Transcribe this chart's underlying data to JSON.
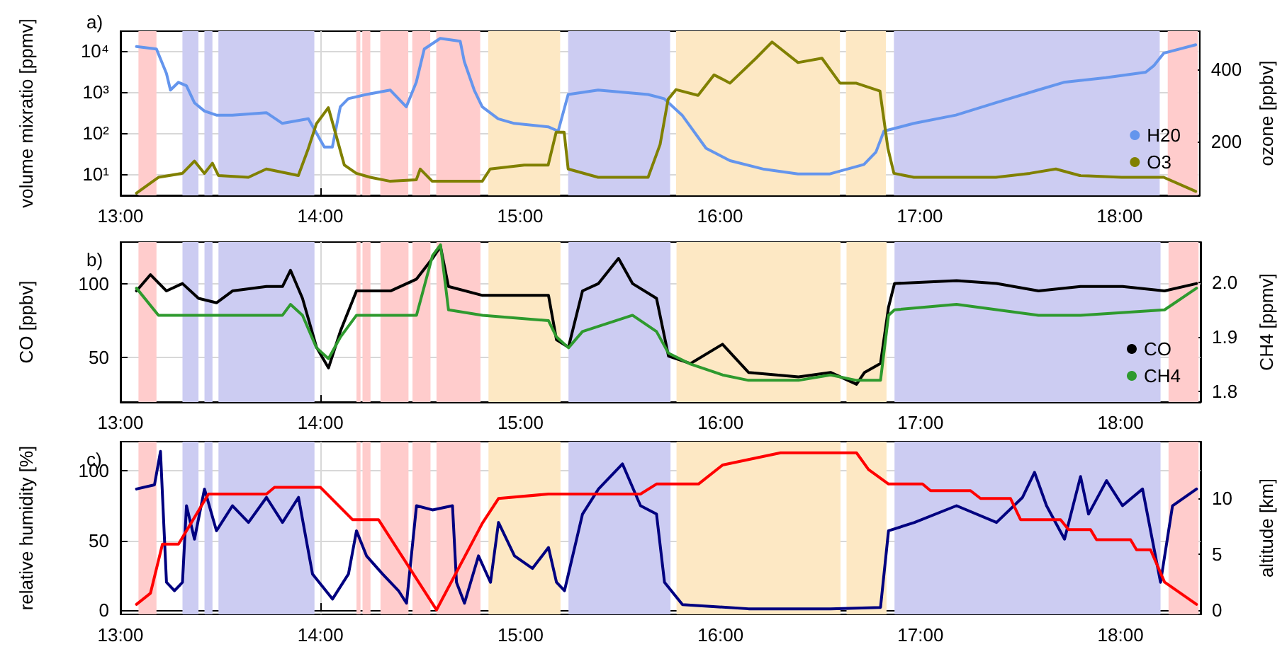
{
  "chart_data": [
    {
      "type": "line",
      "title": "a)",
      "ylabel": "volume mixratio [ppmv]",
      "y2label": "ozone [ppbv]",
      "log": "y",
      "grid": true,
      "legend": "bottom right",
      "marker": "none",
      "xlim": [
        13.0,
        18.4
      ],
      "xticks": [
        {
          "value": 13,
          "label": "13:00"
        },
        {
          "value": 14,
          "label": "14:00"
        },
        {
          "value": 15,
          "label": "15:00"
        },
        {
          "value": 16,
          "label": "16:00"
        },
        {
          "value": 17,
          "label": "17:00"
        },
        {
          "value": 18,
          "label": "18:00"
        }
      ],
      "ylim": [
        3,
        30000
      ],
      "yticks": [
        {
          "value": 10,
          "label": "10¹"
        },
        {
          "value": 100,
          "label": "10²"
        },
        {
          "value": 1000,
          "label": "10³"
        },
        {
          "value": 10000,
          "label": "10⁴"
        }
      ],
      "y2lim": [
        50,
        505
      ],
      "y2ticks": [
        200,
        400
      ],
      "series": [
        {
          "name": "H20",
          "color": "#6495ed",
          "x": [
            13.08,
            13.18,
            13.23,
            13.25,
            13.29,
            13.33,
            13.37,
            13.42,
            13.48,
            13.56,
            13.73,
            13.81,
            13.94,
            14.02,
            14.06,
            14.1,
            14.14,
            14.23,
            14.35,
            14.43,
            14.48,
            14.52,
            14.6,
            14.7,
            14.72,
            14.77,
            14.81,
            14.89,
            14.97,
            15.14,
            15.19,
            15.24,
            15.39,
            15.64,
            15.72,
            15.81,
            15.93,
            16.05,
            16.22,
            16.39,
            16.55,
            16.72,
            16.78,
            16.82,
            16.97,
            17.18,
            17.38,
            17.59,
            17.72,
            17.93,
            18.13,
            18.17,
            18.22,
            18.38
          ],
          "values": [
            12600,
            11000,
            2800,
            1100,
            1700,
            1400,
            540,
            340,
            270,
            270,
            310,
            170,
            220,
            45,
            45,
            430,
            680,
            860,
            1100,
            430,
            1700,
            11000,
            20000,
            17000,
            5500,
            1100,
            430,
            220,
            170,
            140,
            110,
            860,
            1100,
            860,
            680,
            270,
            42,
            21,
            13,
            10,
            10,
            17,
            34,
            110,
            170,
            270,
            540,
            1100,
            1700,
            2200,
            3000,
            4300,
            8700,
            14000
          ]
        },
        {
          "name": "O3",
          "color": "#808000",
          "axis": "y2",
          "x": [
            13.08,
            13.19,
            13.31,
            13.37,
            13.42,
            13.46,
            13.49,
            13.64,
            13.73,
            13.89,
            13.94,
            13.98,
            14.04,
            14.08,
            14.12,
            14.18,
            14.25,
            14.35,
            14.48,
            14.5,
            14.56,
            14.81,
            14.85,
            15.02,
            15.14,
            15.18,
            15.22,
            15.24,
            15.39,
            15.64,
            15.7,
            15.74,
            15.78,
            15.89,
            15.97,
            16.05,
            16.18,
            16.26,
            16.39,
            16.51,
            16.6,
            16.68,
            16.8,
            16.84,
            16.87,
            16.97,
            17.38,
            17.55,
            17.68,
            17.8,
            18.01,
            18.22,
            18.38
          ],
          "values": [
            56,
            100,
            111,
            145,
            111,
            139,
            105,
            100,
            123,
            105,
            180,
            248,
            293,
            214,
            134,
            111,
            100,
            89,
            93,
            123,
            89,
            89,
            123,
            134,
            134,
            225,
            225,
            123,
            100,
            100,
            191,
            316,
            343,
            327,
            384,
            361,
            430,
            475,
            418,
            430,
            361,
            361,
            339,
            180,
            111,
            100,
            100,
            111,
            123,
            105,
            100,
            100,
            61
          ]
        }
      ],
      "bands": [
        {
          "axis": "x",
          "from": 13.09,
          "to": 13.18,
          "color": "#ffcccc"
        },
        {
          "axis": "x",
          "from": 13.31,
          "to": 13.39,
          "color": "#ccccf2"
        },
        {
          "axis": "x",
          "from": 13.42,
          "to": 13.46,
          "color": "#ccccf2"
        },
        {
          "axis": "x",
          "from": 13.49,
          "to": 13.97,
          "color": "#ccccf2"
        },
        {
          "axis": "x",
          "from": 14.18,
          "to": 14.2,
          "color": "#ffcccc"
        },
        {
          "axis": "x",
          "from": 14.21,
          "to": 14.25,
          "color": "#ffcccc"
        },
        {
          "axis": "x",
          "from": 14.3,
          "to": 14.44,
          "color": "#ffcccc"
        },
        {
          "axis": "x",
          "from": 14.46,
          "to": 14.55,
          "color": "#ffcccc"
        },
        {
          "axis": "x",
          "from": 14.58,
          "to": 14.8,
          "color": "#ffcccc"
        },
        {
          "axis": "x",
          "from": 14.84,
          "to": 15.2,
          "color": "#fde8c4"
        },
        {
          "axis": "x",
          "from": 15.24,
          "to": 15.75,
          "color": "#ccccf2"
        },
        {
          "axis": "x",
          "from": 15.78,
          "to": 16.6,
          "color": "#fde8c4"
        },
        {
          "axis": "x",
          "from": 16.63,
          "to": 16.83,
          "color": "#fde8c4"
        },
        {
          "axis": "x",
          "from": 16.87,
          "to": 18.2,
          "color": "#ccccf2"
        },
        {
          "axis": "x",
          "from": 18.24,
          "to": 18.39,
          "color": "#ffcccc"
        }
      ]
    },
    {
      "type": "line",
      "title": "b)",
      "ylabel": "CO [ppbv]",
      "y2label": "CH4 [ppmv]",
      "grid": true,
      "legend": "bottom right",
      "marker": "none",
      "xlim": [
        13.0,
        18.4
      ],
      "xticks": [
        {
          "value": 13,
          "label": "13:00"
        },
        {
          "value": 14,
          "label": "14:00"
        },
        {
          "value": 15,
          "label": "15:00"
        },
        {
          "value": 16,
          "label": "16:00"
        },
        {
          "value": 17,
          "label": "17:00"
        },
        {
          "value": 18,
          "label": "18:00"
        }
      ],
      "ylim": [
        20,
        128
      ],
      "yticks": [
        50,
        100
      ],
      "y2lim": [
        1.78,
        2.075
      ],
      "y2ticks": [
        {
          "value": 1.8,
          "label": "1.8"
        },
        {
          "value": 1.9,
          "label": "1.9"
        },
        {
          "value": 2.0,
          "label": "2.0"
        }
      ],
      "series": [
        {
          "name": "CO",
          "color": "#000000",
          "x": [
            13.08,
            13.15,
            13.23,
            13.31,
            13.39,
            13.48,
            13.56,
            13.73,
            13.81,
            13.85,
            13.91,
            13.98,
            14.04,
            14.1,
            14.18,
            14.35,
            14.48,
            14.56,
            14.6,
            14.64,
            14.81,
            14.97,
            15.14,
            15.18,
            15.24,
            15.31,
            15.39,
            15.49,
            15.56,
            15.68,
            15.74,
            15.85,
            16.01,
            16.14,
            16.39,
            16.55,
            16.68,
            16.72,
            16.8,
            16.84,
            16.87,
            17.18,
            17.38,
            17.59,
            17.8,
            18.01,
            18.22,
            18.38
          ],
          "values": [
            95,
            106,
            95,
            100,
            90,
            87,
            95,
            98,
            98,
            109,
            90,
            57,
            43,
            68,
            95,
            95,
            103,
            117,
            125,
            98,
            92,
            92,
            92,
            62,
            57,
            95,
            100,
            117,
            100,
            90,
            51,
            46,
            59,
            40,
            37,
            40,
            32,
            40,
            46,
            84,
            100,
            102,
            100,
            95,
            98,
            98,
            95,
            100
          ]
        },
        {
          "name": "CH4",
          "color": "#2e9a2e",
          "axis": "y2",
          "x": [
            13.08,
            13.19,
            13.48,
            13.81,
            13.85,
            13.91,
            13.98,
            14.04,
            14.1,
            14.18,
            14.48,
            14.56,
            14.6,
            14.64,
            14.81,
            15.14,
            15.18,
            15.24,
            15.31,
            15.56,
            15.68,
            15.74,
            15.85,
            16.01,
            16.14,
            16.39,
            16.55,
            16.68,
            16.8,
            16.84,
            16.87,
            17.18,
            17.59,
            17.8,
            18.22,
            18.38
          ],
          "values": [
            1.99,
            1.94,
            1.94,
            1.94,
            1.96,
            1.94,
            1.88,
            1.86,
            1.9,
            1.94,
            1.94,
            2.05,
            2.07,
            1.95,
            1.94,
            1.93,
            1.9,
            1.88,
            1.91,
            1.94,
            1.91,
            1.87,
            1.85,
            1.83,
            1.82,
            1.82,
            1.83,
            1.82,
            1.82,
            1.94,
            1.95,
            1.96,
            1.94,
            1.94,
            1.95,
            1.99
          ]
        }
      ],
      "bands": [
        {
          "axis": "x",
          "from": 13.09,
          "to": 13.18,
          "color": "#ffcccc"
        },
        {
          "axis": "x",
          "from": 13.31,
          "to": 13.39,
          "color": "#ccccf2"
        },
        {
          "axis": "x",
          "from": 13.42,
          "to": 13.46,
          "color": "#ccccf2"
        },
        {
          "axis": "x",
          "from": 13.49,
          "to": 13.97,
          "color": "#ccccf2"
        },
        {
          "axis": "x",
          "from": 14.18,
          "to": 14.2,
          "color": "#ffcccc"
        },
        {
          "axis": "x",
          "from": 14.21,
          "to": 14.25,
          "color": "#ffcccc"
        },
        {
          "axis": "x",
          "from": 14.3,
          "to": 14.44,
          "color": "#ffcccc"
        },
        {
          "axis": "x",
          "from": 14.46,
          "to": 14.55,
          "color": "#ffcccc"
        },
        {
          "axis": "x",
          "from": 14.58,
          "to": 14.8,
          "color": "#ffcccc"
        },
        {
          "axis": "x",
          "from": 14.84,
          "to": 15.2,
          "color": "#fde8c4"
        },
        {
          "axis": "x",
          "from": 15.24,
          "to": 15.75,
          "color": "#ccccf2"
        },
        {
          "axis": "x",
          "from": 15.78,
          "to": 16.6,
          "color": "#fde8c4"
        },
        {
          "axis": "x",
          "from": 16.63,
          "to": 16.83,
          "color": "#fde8c4"
        },
        {
          "axis": "x",
          "from": 16.87,
          "to": 18.2,
          "color": "#ccccf2"
        },
        {
          "axis": "x",
          "from": 18.24,
          "to": 18.39,
          "color": "#ffcccc"
        }
      ]
    },
    {
      "type": "line",
      "title": "c)",
      "ylabel": "relative humidity [%]",
      "y2label": "altitude [km]",
      "grid": true,
      "marker": "none",
      "xlim": [
        13.0,
        18.4
      ],
      "xticks": [
        {
          "value": 13,
          "label": "13:00"
        },
        {
          "value": 14,
          "label": "14:00"
        },
        {
          "value": 15,
          "label": "15:00"
        },
        {
          "value": 16,
          "label": "16:00"
        },
        {
          "value": 17,
          "label": "17:00"
        },
        {
          "value": 18,
          "label": "18:00"
        }
      ],
      "ylim": [
        -3,
        121
      ],
      "yticks": [
        0,
        50,
        100
      ],
      "y2lim": [
        -0.4,
        15.1
      ],
      "y2ticks": [
        0,
        5,
        10
      ],
      "series": [
        {
          "color": "#000080",
          "x": [
            13.08,
            13.17,
            13.2,
            13.22,
            13.23,
            13.27,
            13.31,
            13.33,
            13.37,
            13.42,
            13.48,
            13.56,
            13.64,
            13.73,
            13.81,
            13.89,
            13.96,
            14.06,
            14.14,
            14.18,
            14.23,
            14.31,
            14.39,
            14.43,
            14.48,
            14.56,
            14.66,
            14.68,
            14.72,
            14.79,
            14.85,
            14.89,
            14.97,
            15.06,
            15.14,
            15.18,
            15.22,
            15.31,
            15.39,
            15.51,
            15.6,
            15.68,
            15.72,
            15.81,
            16.14,
            16.55,
            16.8,
            16.84,
            16.97,
            17.18,
            17.38,
            17.51,
            17.57,
            17.63,
            17.72,
            17.8,
            17.84,
            17.93,
            18.01,
            18.11,
            18.2,
            18.26,
            18.38
          ],
          "values": [
            87,
            90,
            114,
            51,
            20,
            14,
            20,
            75,
            51,
            87,
            57,
            75,
            63,
            81,
            63,
            81,
            26,
            8,
            26,
            57,
            39,
            26,
            14,
            5,
            75,
            72,
            75,
            20,
            5,
            39,
            20,
            63,
            39,
            30,
            45,
            20,
            14,
            69,
            87,
            105,
            75,
            69,
            20,
            4,
            1,
            1,
            2,
            57,
            63,
            75,
            63,
            81,
            99,
            75,
            51,
            96,
            69,
            93,
            75,
            87,
            20,
            75,
            87
          ]
        },
        {
          "type": "line",
          "color": "#ff0000",
          "axis": "y2",
          "marker": "none",
          "line_style": "solid",
          "x": [
            13.08,
            13.15,
            13.21,
            13.29,
            13.44,
            13.73,
            13.77,
            14.0,
            14.16,
            14.29,
            14.58,
            14.81,
            14.89,
            15.14,
            15.6,
            15.68,
            15.89,
            16.01,
            16.3,
            16.68,
            16.74,
            16.84,
            17.01,
            17.05,
            17.25,
            17.3,
            17.45,
            17.5,
            17.7,
            17.74,
            17.85,
            17.88,
            18.05,
            18.08,
            18.15,
            18.22,
            18.38
          ],
          "values": [
            0.5,
            1.5,
            5.9,
            5.9,
            10.4,
            10.4,
            11.0,
            11.0,
            8.1,
            8.1,
            0,
            7.8,
            10.0,
            10.4,
            10.4,
            11.3,
            11.3,
            13.0,
            14.1,
            14.1,
            12.6,
            11.3,
            11.3,
            10.7,
            10.7,
            10.0,
            10.0,
            8.1,
            8.1,
            7.2,
            7.2,
            6.3,
            6.3,
            5.4,
            5.4,
            2.5,
            0.5
          ]
        }
      ],
      "bands": [
        {
          "axis": "x",
          "from": 13.09,
          "to": 13.18,
          "color": "#ffcccc"
        },
        {
          "axis": "x",
          "from": 13.31,
          "to": 13.39,
          "color": "#ccccf2"
        },
        {
          "axis": "x",
          "from": 13.42,
          "to": 13.46,
          "color": "#ccccf2"
        },
        {
          "axis": "x",
          "from": 13.49,
          "to": 13.97,
          "color": "#ccccf2"
        },
        {
          "axis": "x",
          "from": 14.18,
          "to": 14.2,
          "color": "#ffcccc"
        },
        {
          "axis": "x",
          "from": 14.21,
          "to": 14.25,
          "color": "#ffcccc"
        },
        {
          "axis": "x",
          "from": 14.3,
          "to": 14.44,
          "color": "#ffcccc"
        },
        {
          "axis": "x",
          "from": 14.46,
          "to": 14.55,
          "color": "#ffcccc"
        },
        {
          "axis": "x",
          "from": 14.58,
          "to": 14.8,
          "color": "#ffcccc"
        },
        {
          "axis": "x",
          "from": 14.84,
          "to": 15.2,
          "color": "#fde8c4"
        },
        {
          "axis": "x",
          "from": 15.24,
          "to": 15.75,
          "color": "#ccccf2"
        },
        {
          "axis": "x",
          "from": 15.78,
          "to": 16.6,
          "color": "#fde8c4"
        },
        {
          "axis": "x",
          "from": 16.63,
          "to": 16.83,
          "color": "#fde8c4"
        },
        {
          "axis": "x",
          "from": 16.87,
          "to": 18.2,
          "color": "#ccccf2"
        },
        {
          "axis": "x",
          "from": 18.24,
          "to": 18.39,
          "color": "#ffcccc"
        }
      ]
    }
  ]
}
